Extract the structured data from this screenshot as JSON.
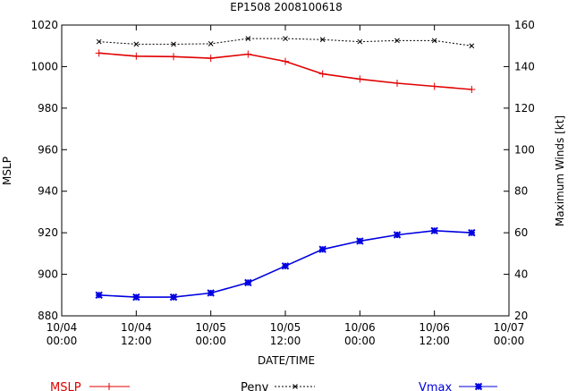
{
  "chart_data": {
    "type": "line",
    "title": "EP1508 2008100618",
    "xlabel": "DATE/TIME",
    "ylabel_left": "MSLP",
    "ylabel_right": "Maximum Winds [kt]",
    "x_ticks": [
      {
        "line1": "10/04",
        "line2": "00:00"
      },
      {
        "line1": "10/04",
        "line2": "12:00"
      },
      {
        "line1": "10/05",
        "line2": "00:00"
      },
      {
        "line1": "10/05",
        "line2": "12:00"
      },
      {
        "line1": "10/06",
        "line2": "00:00"
      },
      {
        "line1": "10/06",
        "line2": "12:00"
      },
      {
        "line1": "10/07",
        "line2": "00:00"
      }
    ],
    "x_hours": [
      6,
      12,
      18,
      24,
      30,
      36,
      42,
      48,
      54,
      60,
      66
    ],
    "x_range_hours": [
      0,
      72
    ],
    "ylim_left": [
      880,
      1020
    ],
    "y_ticks_left": [
      "880",
      "900",
      "920",
      "940",
      "960",
      "980",
      "1000",
      "1020"
    ],
    "ylim_right": [
      20,
      160
    ],
    "y_ticks_right": [
      "20",
      "40",
      "60",
      "80",
      "100",
      "120",
      "140",
      "160"
    ],
    "series": [
      {
        "name": "MSLP",
        "axis": "left",
        "color": "#e00000",
        "marker": "plus",
        "values": [
          1006.5,
          1005,
          1004.8,
          1004,
          1006,
          1002.5,
          996.5,
          994,
          992,
          990.5,
          989
        ]
      },
      {
        "name": "Penv",
        "axis": "left",
        "color": "#000000",
        "marker": "x",
        "values": [
          1012,
          1010.8,
          1010.8,
          1011,
          1013.5,
          1013.5,
          1013,
          1012,
          1012.5,
          1012.5,
          1010
        ]
      },
      {
        "name": "Vmax",
        "axis": "right",
        "color": "#0000e0",
        "marker": "star",
        "values": [
          30,
          29,
          29,
          31,
          36,
          44,
          52,
          56,
          59,
          61,
          60
        ]
      }
    ]
  }
}
